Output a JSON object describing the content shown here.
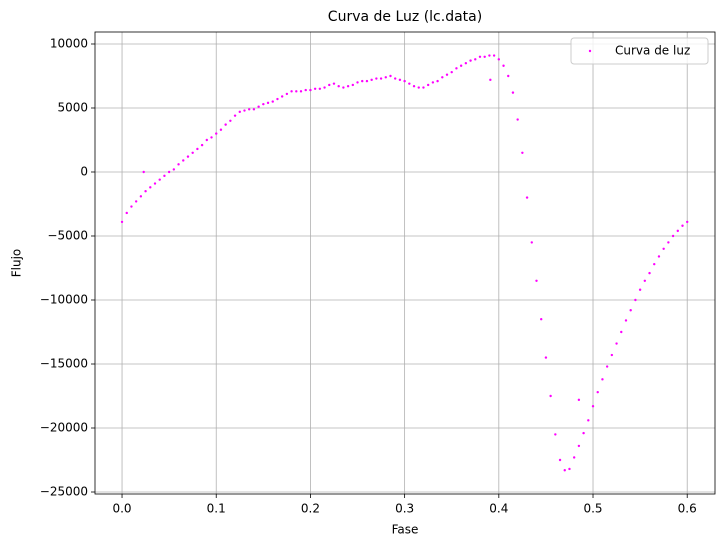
{
  "chart_data": {
    "type": "scatter",
    "title": "Curva de Luz (lc.data)",
    "x_label": "Fase",
    "y_label": "Flujo",
    "xlim": [
      -0.0287,
      0.6295
    ],
    "ylim": [
      -25156,
      10937
    ],
    "xticks": [
      {
        "value": 0,
        "label": "0.0"
      },
      0.1,
      0.2,
      0.3,
      0.4,
      0.5,
      0.6
    ],
    "yticks": [
      {
        "value": -25000,
        "label": "−25000"
      },
      {
        "value": -20000,
        "label": "−20000"
      },
      {
        "value": -15000,
        "label": "−15000"
      },
      {
        "value": -10000,
        "label": "−10000"
      },
      {
        "value": -5000,
        "label": "−5000"
      },
      0,
      5000,
      10000
    ],
    "grid": true,
    "legend_position": "upper-right",
    "series": [
      {
        "name": "Curva de luz",
        "color": "#ff00ff",
        "x": [
          0.0,
          0.005,
          0.01,
          0.015,
          0.02,
          0.025,
          0.03,
          0.035,
          0.04,
          0.045,
          0.05,
          0.055,
          0.06,
          0.065,
          0.07,
          0.075,
          0.08,
          0.085,
          0.09,
          0.095,
          0.1,
          0.105,
          0.11,
          0.115,
          0.12,
          0.125,
          0.13,
          0.135,
          0.14,
          0.145,
          0.15,
          0.155,
          0.16,
          0.165,
          0.17,
          0.175,
          0.18,
          0.185,
          0.19,
          0.195,
          0.2,
          0.205,
          0.21,
          0.215,
          0.22,
          0.225,
          0.23,
          0.235,
          0.24,
          0.245,
          0.25,
          0.255,
          0.26,
          0.265,
          0.27,
          0.275,
          0.28,
          0.285,
          0.29,
          0.295,
          0.3,
          0.305,
          0.31,
          0.315,
          0.32,
          0.325,
          0.33,
          0.335,
          0.34,
          0.345,
          0.35,
          0.355,
          0.36,
          0.365,
          0.37,
          0.375,
          0.38,
          0.385,
          0.39,
          0.395,
          0.4,
          0.405,
          0.41,
          0.415,
          0.42,
          0.425,
          0.43,
          0.435,
          0.44,
          0.445,
          0.45,
          0.455,
          0.46,
          0.465,
          0.47,
          0.475,
          0.48,
          0.485,
          0.49,
          0.495,
          0.5,
          0.505,
          0.51,
          0.515,
          0.52,
          0.525,
          0.53,
          0.535,
          0.54,
          0.545,
          0.55,
          0.555,
          0.56,
          0.565,
          0.57,
          0.575,
          0.58,
          0.585,
          0.59,
          0.595,
          0.6,
          0.023,
          0.391,
          0.485
        ],
        "values": [
          -3900,
          -3200,
          -2700,
          -2300,
          -1900,
          -1500,
          -1200,
          -900,
          -600,
          -300,
          0,
          200,
          600,
          900,
          1200,
          1500,
          1800,
          2100,
          2500,
          2700,
          3000,
          3300,
          3700,
          4000,
          4400,
          4700,
          4800,
          4900,
          4900,
          5100,
          5300,
          5400,
          5500,
          5700,
          5900,
          6100,
          6300,
          6300,
          6300,
          6400,
          6400,
          6500,
          6500,
          6600,
          6800,
          6900,
          6700,
          6600,
          6700,
          6800,
          7000,
          7100,
          7100,
          7200,
          7300,
          7300,
          7400,
          7500,
          7300,
          7200,
          7100,
          6900,
          6700,
          6600,
          6600,
          6800,
          7000,
          7100,
          7400,
          7600,
          7800,
          8100,
          8300,
          8500,
          8700,
          8800,
          9000,
          9000,
          9100,
          9100,
          8800,
          8300,
          7500,
          6200,
          4100,
          1500,
          -2000,
          -5500,
          -8500,
          -11500,
          -14500,
          -17500,
          -20500,
          -22500,
          -23300,
          -23200,
          -22300,
          -21400,
          -20400,
          -19400,
          -18300,
          -17200,
          -16200,
          -15200,
          -14300,
          -13400,
          -12500,
          -11600,
          -10800,
          -10000,
          -9200,
          -8500,
          -7900,
          -7200,
          -6600,
          -6000,
          -5500,
          -5000,
          -4600,
          -4200,
          -3900,
          0,
          7200,
          -17800
        ]
      }
    ]
  }
}
